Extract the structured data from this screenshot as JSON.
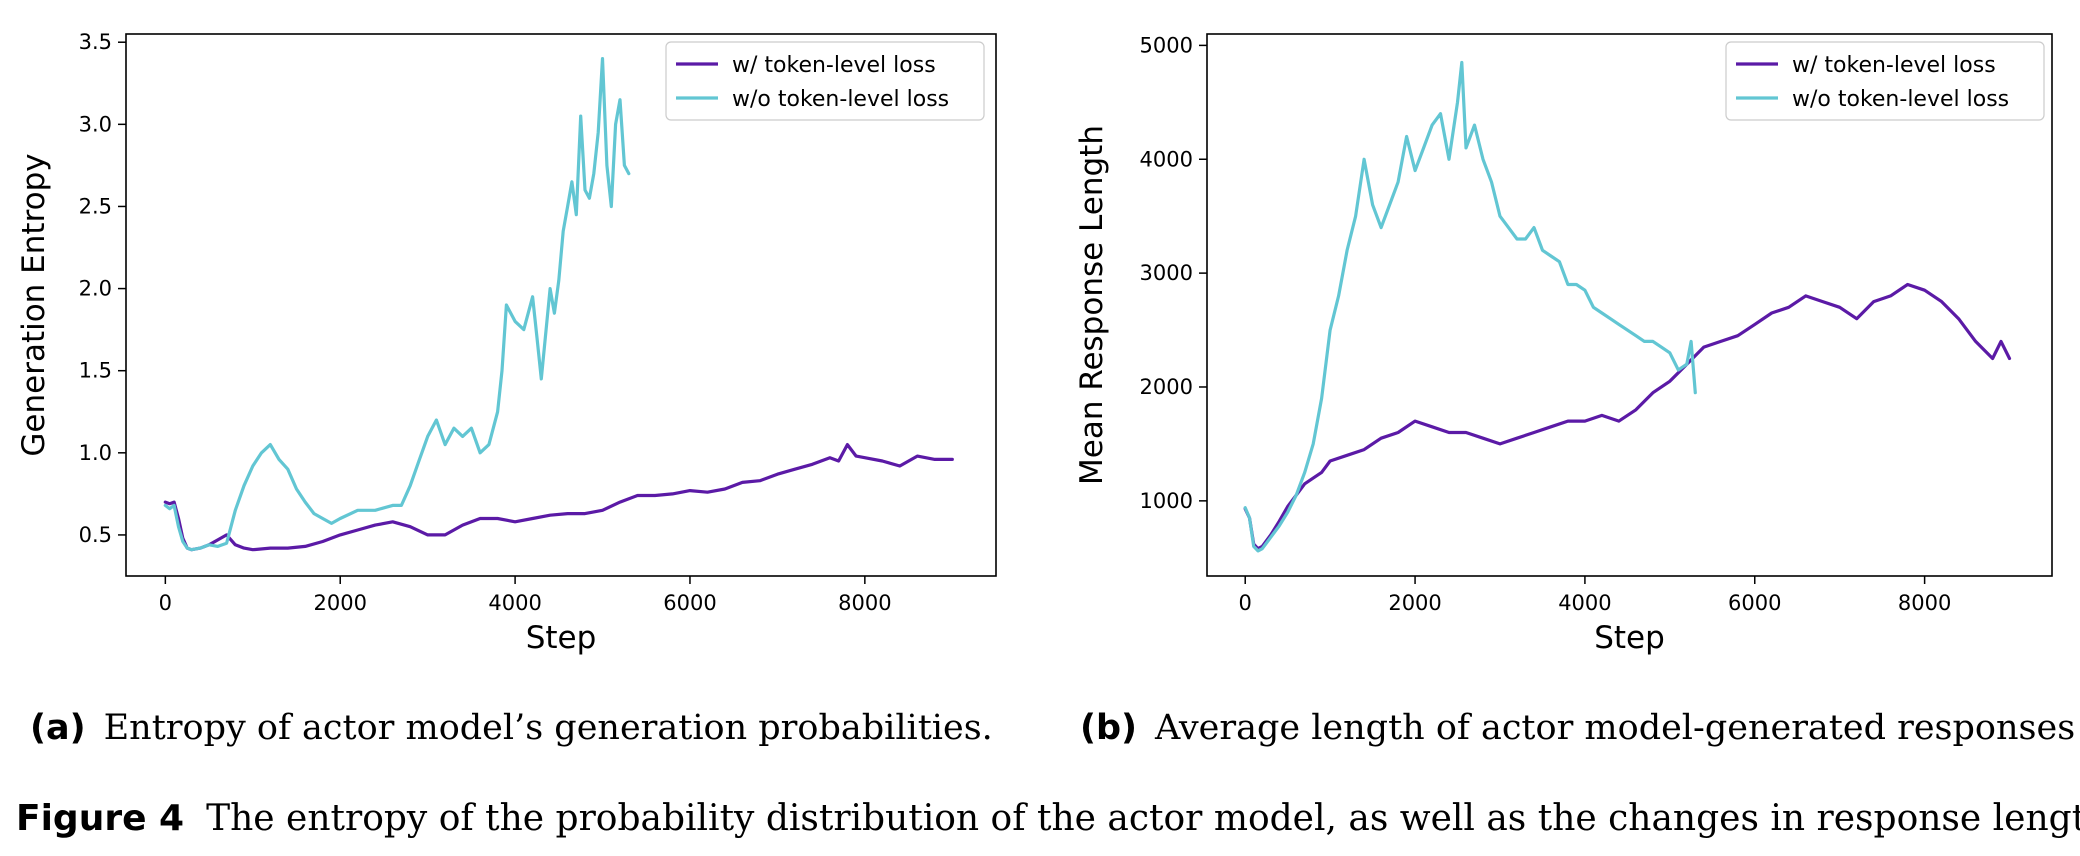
{
  "colors": {
    "with": "#5b1aa6",
    "without": "#62c6d3"
  },
  "captions": {
    "a_label": "(a)",
    "a_text": "Entropy of actor model’s generation probabilities.",
    "b_label": "(b)",
    "b_text": "Average length of actor model-generated responses",
    "figure_label": "Figure 4",
    "figure_text": "The entropy of the probability distribution of the actor model, as well as the changes in response length."
  },
  "chart_data": [
    {
      "type": "line",
      "xlabel": "Step",
      "ylabel": "Generation Entropy",
      "xlim": [
        -450,
        9500
      ],
      "ylim": [
        0.25,
        3.55
      ],
      "xticks": [
        0,
        2000,
        4000,
        6000,
        8000
      ],
      "xtick_labels": [
        "0",
        "2000",
        "4000",
        "6000",
        "8000"
      ],
      "yticks": [
        0.5,
        1.0,
        1.5,
        2.0,
        2.5,
        3.0,
        3.5
      ],
      "ytick_labels": [
        "0.5",
        "1.0",
        "1.5",
        "2.0",
        "2.5",
        "3.0",
        "3.5"
      ],
      "grid": false,
      "legend": "top-right",
      "series": [
        {
          "name": "w/ token-level loss",
          "color": "#5b1aa6",
          "x": [
            0,
            50,
            100,
            150,
            200,
            250,
            300,
            400,
            500,
            600,
            700,
            800,
            900,
            1000,
            1200,
            1400,
            1600,
            1800,
            2000,
            2200,
            2400,
            2600,
            2800,
            3000,
            3200,
            3400,
            3600,
            3800,
            4000,
            4200,
            4400,
            4600,
            4800,
            5000,
            5200,
            5400,
            5600,
            5800,
            6000,
            6200,
            6400,
            6600,
            6800,
            7000,
            7200,
            7400,
            7600,
            7700,
            7800,
            7900,
            8000,
            8200,
            8400,
            8600,
            8800,
            9000
          ],
          "y": [
            0.7,
            0.69,
            0.7,
            0.6,
            0.48,
            0.42,
            0.41,
            0.42,
            0.44,
            0.47,
            0.5,
            0.44,
            0.42,
            0.41,
            0.42,
            0.42,
            0.43,
            0.46,
            0.5,
            0.53,
            0.56,
            0.58,
            0.55,
            0.5,
            0.5,
            0.56,
            0.6,
            0.6,
            0.58,
            0.6,
            0.62,
            0.63,
            0.63,
            0.65,
            0.7,
            0.74,
            0.74,
            0.75,
            0.77,
            0.76,
            0.78,
            0.82,
            0.83,
            0.87,
            0.9,
            0.93,
            0.97,
            0.95,
            1.05,
            0.98,
            0.97,
            0.95,
            0.92,
            0.98,
            0.96,
            0.96
          ]
        },
        {
          "name": "w/o token-level loss",
          "color": "#62c6d3",
          "x": [
            0,
            50,
            100,
            150,
            200,
            250,
            300,
            400,
            500,
            600,
            700,
            800,
            900,
            1000,
            1100,
            1200,
            1300,
            1400,
            1500,
            1600,
            1700,
            1800,
            1900,
            2000,
            2200,
            2400,
            2600,
            2700,
            2800,
            2900,
            3000,
            3100,
            3200,
            3300,
            3400,
            3500,
            3600,
            3700,
            3800,
            3850,
            3900,
            4000,
            4100,
            4200,
            4250,
            4300,
            4400,
            4450,
            4500,
            4550,
            4600,
            4650,
            4700,
            4750,
            4800,
            4850,
            4900,
            4950,
            5000,
            5050,
            5100,
            5150,
            5200,
            5250,
            5300
          ],
          "y": [
            0.68,
            0.66,
            0.68,
            0.55,
            0.46,
            0.42,
            0.41,
            0.42,
            0.44,
            0.43,
            0.45,
            0.65,
            0.8,
            0.92,
            1.0,
            1.05,
            0.96,
            0.9,
            0.78,
            0.7,
            0.63,
            0.6,
            0.57,
            0.6,
            0.65,
            0.65,
            0.68,
            0.68,
            0.8,
            0.95,
            1.1,
            1.2,
            1.05,
            1.15,
            1.1,
            1.15,
            1.0,
            1.05,
            1.25,
            1.5,
            1.9,
            1.8,
            1.75,
            1.95,
            1.7,
            1.45,
            2.0,
            1.85,
            2.05,
            2.35,
            2.5,
            2.65,
            2.45,
            3.05,
            2.6,
            2.55,
            2.7,
            2.95,
            3.4,
            2.75,
            2.5,
            3.0,
            3.15,
            2.75,
            2.7
          ]
        }
      ]
    },
    {
      "type": "line",
      "xlabel": "Step",
      "ylabel": "Mean Response Length",
      "xlim": [
        -450,
        9500
      ],
      "ylim": [
        340,
        5100
      ],
      "xticks": [
        0,
        2000,
        4000,
        6000,
        8000
      ],
      "xtick_labels": [
        "0",
        "2000",
        "4000",
        "6000",
        "8000"
      ],
      "yticks": [
        1000,
        2000,
        3000,
        4000,
        5000
      ],
      "ytick_labels": [
        "1000",
        "2000",
        "3000",
        "4000",
        "5000"
      ],
      "grid": false,
      "legend": "top-right",
      "series": [
        {
          "name": "w/ token-level loss",
          "color": "#5b1aa6",
          "x": [
            0,
            50,
            100,
            150,
            200,
            300,
            400,
            500,
            600,
            700,
            800,
            900,
            1000,
            1200,
            1400,
            1600,
            1800,
            2000,
            2200,
            2400,
            2600,
            2800,
            3000,
            3200,
            3400,
            3600,
            3800,
            4000,
            4200,
            4400,
            4600,
            4800,
            5000,
            5200,
            5400,
            5600,
            5800,
            6000,
            6200,
            6400,
            6600,
            6800,
            7000,
            7200,
            7400,
            7600,
            7800,
            8000,
            8200,
            8400,
            8600,
            8800,
            8900,
            9000
          ],
          "y": [
            930,
            850,
            620,
            580,
            600,
            700,
            820,
            950,
            1050,
            1150,
            1200,
            1250,
            1350,
            1400,
            1450,
            1550,
            1600,
            1700,
            1650,
            1600,
            1600,
            1550,
            1500,
            1550,
            1600,
            1650,
            1700,
            1700,
            1750,
            1700,
            1800,
            1950,
            2050,
            2200,
            2350,
            2400,
            2450,
            2550,
            2650,
            2700,
            2800,
            2750,
            2700,
            2600,
            2750,
            2800,
            2900,
            2850,
            2750,
            2600,
            2400,
            2250,
            2400,
            2250
          ]
        },
        {
          "name": "w/o token-level loss",
          "color": "#62c6d3",
          "x": [
            0,
            50,
            100,
            150,
            200,
            300,
            400,
            500,
            600,
            700,
            800,
            900,
            1000,
            1100,
            1200,
            1300,
            1400,
            1500,
            1600,
            1700,
            1800,
            1900,
            2000,
            2100,
            2200,
            2300,
            2400,
            2500,
            2550,
            2600,
            2700,
            2800,
            2900,
            3000,
            3100,
            3200,
            3300,
            3400,
            3500,
            3600,
            3700,
            3800,
            3900,
            4000,
            4100,
            4200,
            4300,
            4400,
            4500,
            4600,
            4700,
            4800,
            4900,
            5000,
            5100,
            5200,
            5250,
            5300
          ],
          "y": [
            940,
            850,
            600,
            560,
            580,
            680,
            780,
            900,
            1050,
            1250,
            1500,
            1900,
            2500,
            2800,
            3200,
            3500,
            4000,
            3600,
            3400,
            3600,
            3800,
            4200,
            3900,
            4100,
            4300,
            4400,
            4000,
            4500,
            4850,
            4100,
            4300,
            4000,
            3800,
            3500,
            3400,
            3300,
            3300,
            3400,
            3200,
            3150,
            3100,
            2900,
            2900,
            2850,
            2700,
            2650,
            2600,
            2550,
            2500,
            2450,
            2400,
            2400,
            2350,
            2300,
            2150,
            2200,
            2400,
            1950
          ]
        }
      ]
    }
  ]
}
